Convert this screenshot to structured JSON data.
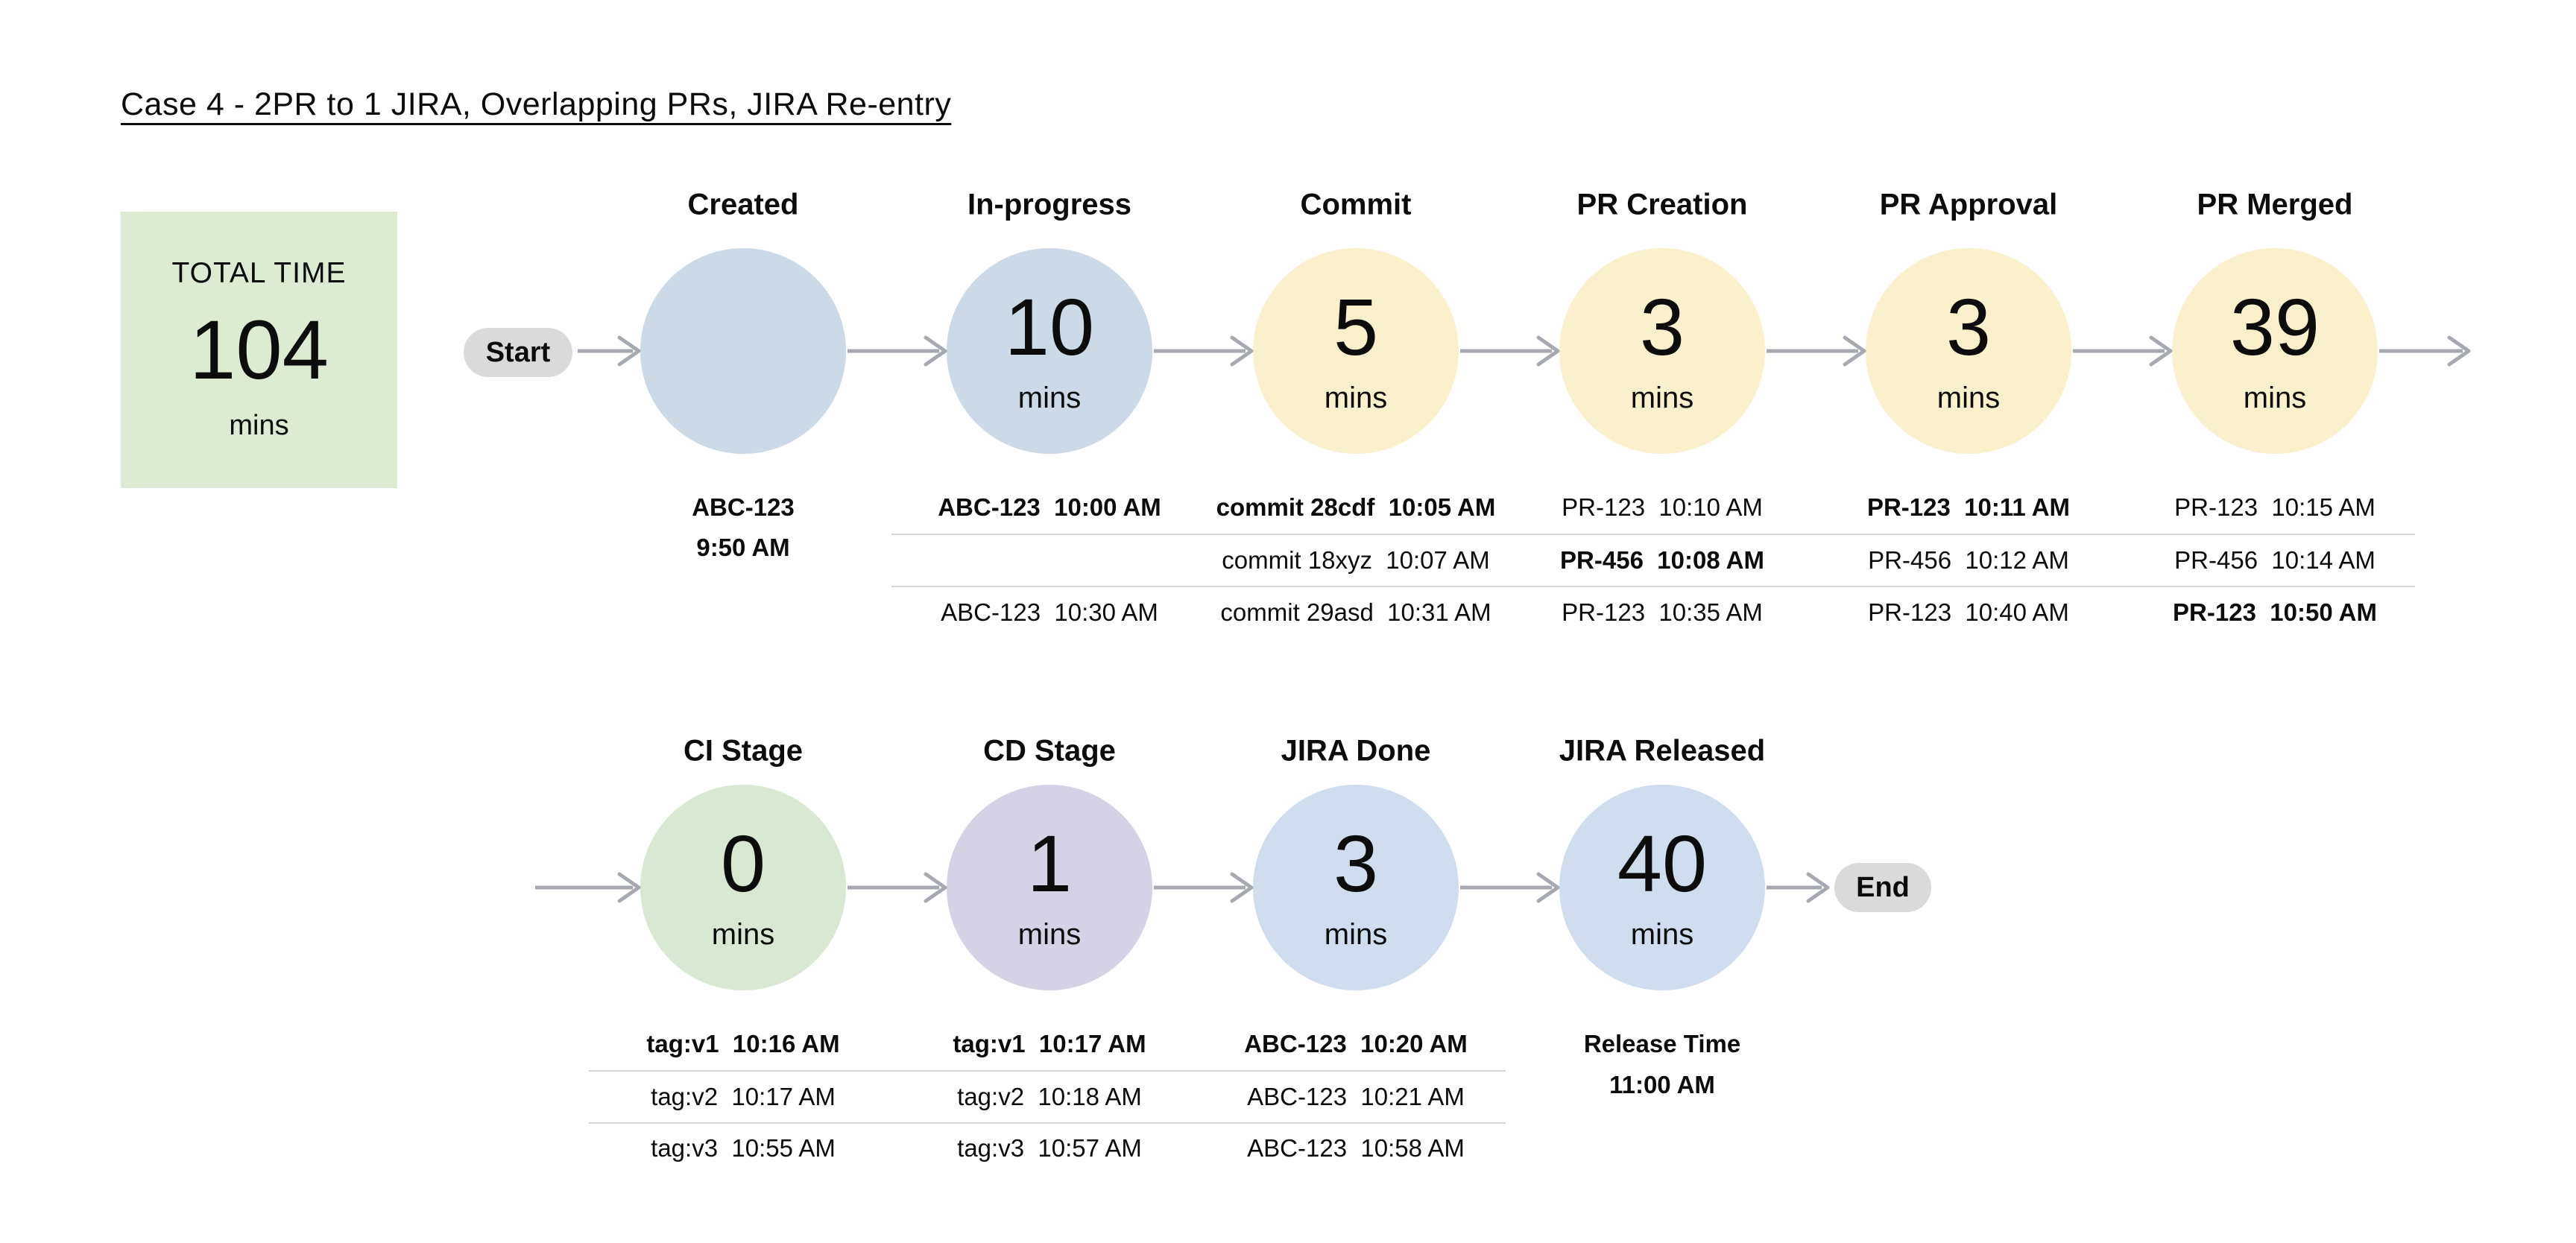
{
  "title": "Case 4 - 2PR to 1 JIRA, Overlapping PRs, JIRA Re-entry",
  "total_time": {
    "label": "TOTAL TIME",
    "value": "104",
    "unit": "mins"
  },
  "flow": {
    "start_label": "Start",
    "end_label": "End"
  },
  "colors": {
    "background": "#ffffff",
    "text": "#0c0c0c",
    "total_box_green": "#dcebd2",
    "pill_gray": "#dadada",
    "arrow_gray": "#a6a9b1",
    "separator_gray": "#d8d8d8",
    "circle_blue_gray": "#ccd9e6",
    "circle_yellow": "#faf0cc",
    "circle_green": "#d9e8d2",
    "circle_purple": "#d6d2e6",
    "circle_blue": "#cfddee"
  },
  "rows": [
    {
      "stages": [
        {
          "label": "Created",
          "value": "",
          "unit": "",
          "color": "#ccd9e6",
          "annotation_layout": "stacked",
          "annotations": [
            {
              "text": "ABC-123",
              "bold": true
            },
            {
              "text": "9:50 AM",
              "bold": true
            }
          ]
        },
        {
          "label": "In-progress",
          "value": "10",
          "unit": "mins",
          "color": "#ccd9e6",
          "annotation_layout": "table",
          "annotations": [
            {
              "text": "ABC-123  10:00 AM",
              "bold": true
            },
            {
              "text": "",
              "bold": false
            },
            {
              "text": "ABC-123  10:30 AM",
              "bold": false
            }
          ]
        },
        {
          "label": "Commit",
          "value": "5",
          "unit": "mins",
          "color": "#faf0cc",
          "annotation_layout": "table",
          "annotations": [
            {
              "text": "commit 28cdf  10:05 AM",
              "bold": true
            },
            {
              "text": "commit 18xyz  10:07 AM",
              "bold": false
            },
            {
              "text": "commit 29asd  10:31 AM",
              "bold": false
            }
          ]
        },
        {
          "label": "PR Creation",
          "value": "3",
          "unit": "mins",
          "color": "#faf0cc",
          "annotation_layout": "table",
          "annotations": [
            {
              "text": "PR-123  10:10 AM",
              "bold": false
            },
            {
              "text": "PR-456  10:08 AM",
              "bold": true
            },
            {
              "text": "PR-123  10:35 AM",
              "bold": false
            }
          ]
        },
        {
          "label": "PR Approval",
          "value": "3",
          "unit": "mins",
          "color": "#faf0cc",
          "annotation_layout": "table",
          "annotations": [
            {
              "text": "PR-123  10:11 AM",
              "bold": true
            },
            {
              "text": "PR-456  10:12 AM",
              "bold": false
            },
            {
              "text": "PR-123  10:40 AM",
              "bold": false
            }
          ]
        },
        {
          "label": "PR Merged",
          "value": "39",
          "unit": "mins",
          "color": "#faf0cc",
          "annotation_layout": "table",
          "annotations": [
            {
              "text": "PR-123  10:15 AM",
              "bold": false
            },
            {
              "text": "PR-456  10:14 AM",
              "bold": false
            },
            {
              "text": "PR-123  10:50 AM",
              "bold": true
            }
          ]
        }
      ]
    },
    {
      "stages": [
        {
          "label": "CI Stage",
          "value": "0",
          "unit": "mins",
          "color": "#d9e8d2",
          "annotation_layout": "table",
          "annotations": [
            {
              "text": "tag:v1  10:16 AM",
              "bold": true
            },
            {
              "text": "tag:v2  10:17 AM",
              "bold": false
            },
            {
              "text": "tag:v3  10:55 AM",
              "bold": false
            }
          ]
        },
        {
          "label": "CD Stage",
          "value": "1",
          "unit": "mins",
          "color": "#d6d2e6",
          "annotation_layout": "table",
          "annotations": [
            {
              "text": "tag:v1  10:17 AM",
              "bold": true
            },
            {
              "text": "tag:v2  10:18 AM",
              "bold": false
            },
            {
              "text": "tag:v3  10:57 AM",
              "bold": false
            }
          ]
        },
        {
          "label": "JIRA Done",
          "value": "3",
          "unit": "mins",
          "color": "#cfddee",
          "annotation_layout": "table",
          "annotations": [
            {
              "text": "ABC-123  10:20 AM",
              "bold": true
            },
            {
              "text": "ABC-123  10:21 AM",
              "bold": false
            },
            {
              "text": "ABC-123  10:58 AM",
              "bold": false
            }
          ]
        },
        {
          "label": "JIRA Released",
          "value": "40",
          "unit": "mins",
          "color": "#cfddee",
          "annotation_layout": "stacked",
          "annotations": [
            {
              "text": "Release Time",
              "bold": true
            },
            {
              "text": "11:00 AM",
              "bold": true
            }
          ]
        }
      ]
    }
  ]
}
